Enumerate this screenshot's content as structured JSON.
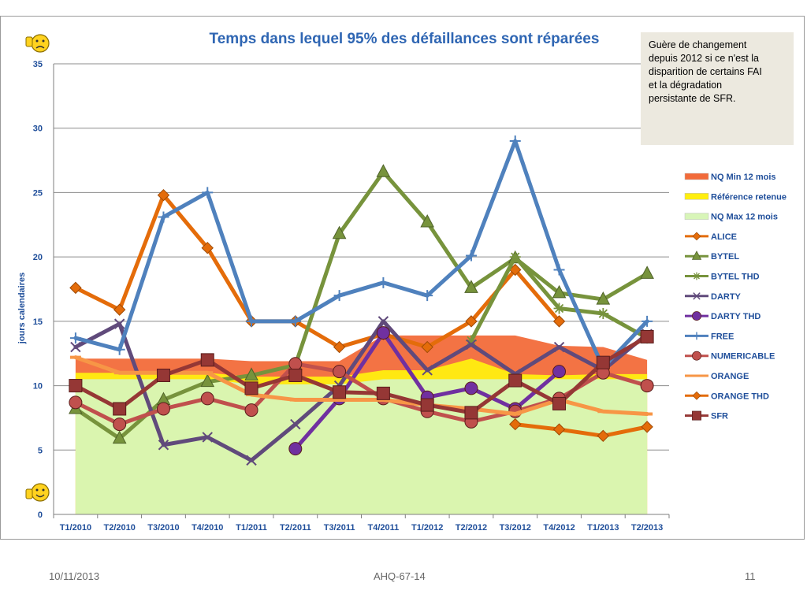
{
  "chart_data": {
    "type": "line",
    "title": "Temps dans lequel 95% des défaillances sont réparées",
    "xlabel": "",
    "ylabel": "jours calendaires",
    "ylim": [
      0,
      35
    ],
    "yticks": [
      0,
      5,
      10,
      15,
      20,
      25,
      30,
      35
    ],
    "grid": true,
    "legend_position": "right",
    "categories": [
      "T1/2010",
      "T2/2010",
      "T3/2010",
      "T4/2010",
      "T1/2011",
      "T2/2011",
      "T3/2011",
      "T4/2011",
      "T1/2012",
      "T2/2012",
      "T3/2012",
      "T4/2012",
      "T1/2013",
      "T2/2013"
    ],
    "areas": [
      {
        "name": "NQ Min 12 mois",
        "color": "#f26b3a",
        "values": [
          12.1,
          12.1,
          12.1,
          12.1,
          11.9,
          11.9,
          11.9,
          13.9,
          13.9,
          13.9,
          13.9,
          13.1,
          13.0,
          12.0
        ]
      },
      {
        "name": "Référence retenue",
        "color": "#ffee10",
        "values": [
          11.0,
          11.0,
          11.0,
          11.0,
          10.7,
          10.7,
          10.7,
          11.2,
          11.2,
          12.1,
          10.9,
          10.8,
          10.9,
          10.9
        ]
      },
      {
        "name": "NQ Max 12 mois",
        "color": "#d8f5b8",
        "values": [
          10.5,
          10.5,
          10.5,
          10.5,
          10.1,
          10.1,
          10.1,
          10.5,
          10.5,
          10.5,
          10.5,
          10.5,
          10.5,
          10.5
        ]
      }
    ],
    "series": [
      {
        "name": "ALICE",
        "color": "#e46c0a",
        "marker": "diamond",
        "values": [
          17.6,
          15.9,
          24.8,
          20.7,
          15.0,
          15.0,
          13.0,
          14.0,
          13.0,
          15.0,
          19.0,
          15.0,
          null,
          null
        ]
      },
      {
        "name": "BYTEL",
        "color": "#77933c",
        "marker": "triangle",
        "values": [
          8.2,
          5.9,
          8.9,
          10.3,
          10.8,
          11.6,
          21.8,
          26.6,
          22.7,
          17.6,
          19.9,
          17.2,
          16.7,
          18.7
        ]
      },
      {
        "name": "BYTEL THD",
        "color": "#77933c",
        "marker": "star",
        "values": [
          null,
          null,
          null,
          null,
          null,
          null,
          null,
          null,
          null,
          13.5,
          20.0,
          16.0,
          15.6,
          13.7
        ]
      },
      {
        "name": "DARTY",
        "color": "#604a7b",
        "marker": "x",
        "values": [
          13.0,
          14.8,
          5.4,
          6.0,
          4.2,
          7.0,
          10.0,
          15.0,
          11.2,
          13.2,
          10.9,
          13.0,
          11.2,
          14.0
        ]
      },
      {
        "name": "DARTY THD",
        "color": "#7030a0",
        "marker": "circle",
        "values": [
          null,
          null,
          null,
          null,
          null,
          5.1,
          9.0,
          14.1,
          9.1,
          9.8,
          8.2,
          11.1,
          null,
          null
        ]
      },
      {
        "name": "FREE",
        "color": "#4f81bd",
        "marker": "plus",
        "values": [
          13.7,
          12.8,
          23.1,
          25.0,
          15.0,
          15.0,
          17.0,
          18.0,
          17.0,
          20.1,
          29.0,
          19.0,
          11.4,
          15.0
        ]
      },
      {
        "name": "NUMERICABLE",
        "color": "#c0504d",
        "marker": "circle",
        "values": [
          8.7,
          7.0,
          8.2,
          9.0,
          8.1,
          11.7,
          11.1,
          9.0,
          8.0,
          7.2,
          8.0,
          9.0,
          11.0,
          10.0
        ]
      },
      {
        "name": "ORANGE",
        "color": "#f79646",
        "marker": "dash",
        "values": [
          12.2,
          11.0,
          11.0,
          11.0,
          9.3,
          8.9,
          8.9,
          8.9,
          8.5,
          8.2,
          7.8,
          8.9,
          8.0,
          7.8
        ]
      },
      {
        "name": "ORANGE THD",
        "color": "#e46c0a",
        "marker": "diamond",
        "values": [
          null,
          null,
          null,
          null,
          null,
          null,
          null,
          null,
          null,
          null,
          7.0,
          6.6,
          6.1,
          6.8
        ]
      },
      {
        "name": "SFR",
        "color": "#953735",
        "marker": "square",
        "values": [
          10.0,
          8.2,
          10.8,
          12.0,
          9.8,
          10.8,
          9.5,
          9.4,
          8.5,
          7.9,
          10.4,
          8.6,
          11.8,
          13.8
        ]
      }
    ]
  },
  "annotation": {
    "lines": [
      "Guère de changement",
      "depuis 2012 si ce n'est la",
      "disparition de certains FAI",
      "et la dégradation",
      "persistante de SFR."
    ]
  },
  "icons": {
    "top": "thumbs-down-smiley-icon",
    "bottom": "thumbs-up-smiley-icon"
  },
  "footer": {
    "date": "10/11/2013",
    "reference": "AHQ-67-14",
    "page": "11"
  }
}
